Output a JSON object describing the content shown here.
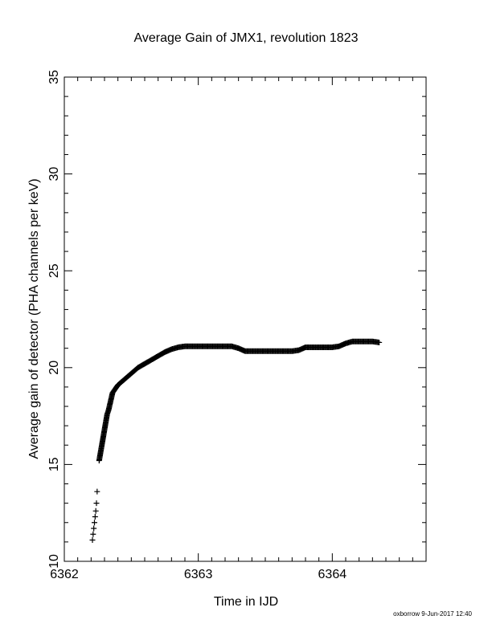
{
  "chart_data": {
    "type": "scatter",
    "title": "Average Gain of JMX1, revolution 1823",
    "xlabel": "Time in IJD",
    "ylabel": "Average gain of detector (PHA channels per keV)",
    "xlim": [
      6362,
      6364.7
    ],
    "ylim": [
      10,
      35
    ],
    "xticks": [
      6362,
      6363,
      6364
    ],
    "xtick_labels": [
      "6362",
      "6363",
      "6364"
    ],
    "yticks": [
      10,
      15,
      20,
      25,
      30,
      35
    ],
    "ytick_labels": [
      "10",
      "15",
      "20",
      "25",
      "30",
      "35"
    ],
    "grid": false,
    "marker": "plus",
    "footer": "oxborrow  9-Jun-2017 12:40",
    "series": [
      {
        "x": [
          6362.21,
          6362.215,
          6362.22,
          6362.225,
          6362.23,
          6362.235,
          6362.24,
          6362.245,
          6362.26,
          6362.27,
          6362.28,
          6362.29,
          6362.3,
          6362.31,
          6362.32,
          6362.33,
          6362.34,
          6362.35,
          6362.36,
          6362.38,
          6362.4,
          6362.45,
          6362.5,
          6362.55,
          6362.6,
          6362.65,
          6362.7,
          6362.75,
          6362.8,
          6362.85,
          6362.9,
          6362.95,
          6363.0,
          6363.05,
          6363.1,
          6363.15,
          6363.2,
          6363.25,
          6363.3,
          6363.35,
          6363.4,
          6363.45,
          6363.5,
          6363.55,
          6363.6,
          6363.65,
          6363.7,
          6363.75,
          6363.8,
          6363.85,
          6363.9,
          6363.95,
          6364.0,
          6364.05,
          6364.1,
          6364.15,
          6364.2,
          6364.25,
          6364.3,
          6364.35
        ],
        "y": [
          11.1,
          11.4,
          11.7,
          12.0,
          12.3,
          12.6,
          13.0,
          13.6,
          15.2,
          15.6,
          16.0,
          16.4,
          16.8,
          17.2,
          17.6,
          17.8,
          18.1,
          18.4,
          18.7,
          18.9,
          19.1,
          19.4,
          19.7,
          20.0,
          20.2,
          20.4,
          20.6,
          20.8,
          20.95,
          21.05,
          21.1,
          21.1,
          21.1,
          21.1,
          21.1,
          21.1,
          21.1,
          21.1,
          21.0,
          20.85,
          20.85,
          20.85,
          20.85,
          20.85,
          20.85,
          20.85,
          20.85,
          20.9,
          21.05,
          21.05,
          21.05,
          21.05,
          21.05,
          21.1,
          21.25,
          21.35,
          21.35,
          21.35,
          21.35,
          21.3
        ]
      }
    ]
  }
}
